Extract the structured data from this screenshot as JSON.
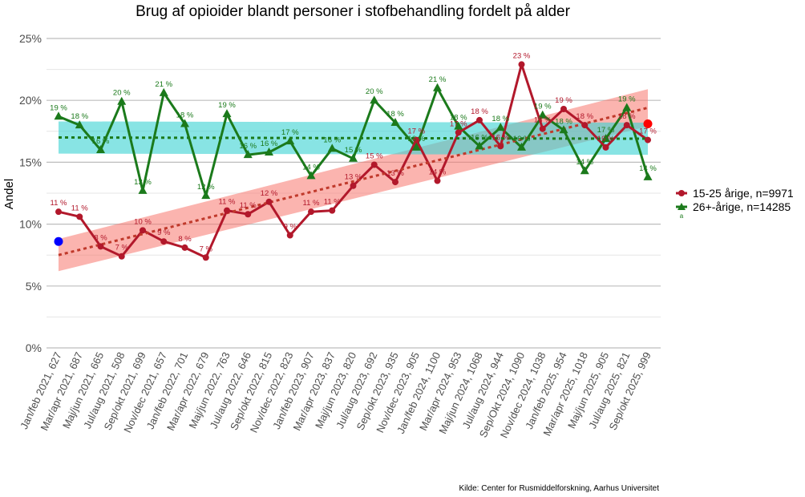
{
  "chart_data": {
    "type": "line",
    "title": "Brug af opioider blandt personer i stofbehandling fordelt på alder",
    "xlabel": "",
    "ylabel": "Andel",
    "ylim": [
      0,
      25
    ],
    "yticks": [
      "0%",
      "5%",
      "10%",
      "15%",
      "20%",
      "25%"
    ],
    "ytick_values": [
      0,
      5,
      10,
      15,
      20,
      25
    ],
    "categories": [
      "Jan/feb 2021, 627",
      "Mar/apr 2021, 687",
      "Maj/jun 2021, 665",
      "Jul/aug 2021, 508",
      "Sep/okt 2021, 699",
      "Nov/dec 2021, 657",
      "Jan/feb 2022, 701",
      "Mar/apr 2022, 679",
      "Maj/jun 2022, 763",
      "Jul/aug 2022, 646",
      "Sep/okt 2022, 815",
      "Nov/dec 2022, 823",
      "Jan/feb 2023, 907",
      "Mar/apr 2023, 837",
      "Maj/jun 2023, 820",
      "Jul/aug 2023, 692",
      "Sep/okt 2023, 935",
      "Nov/dec 2023, 905",
      "Jan/feb 2024, 1100",
      "Mar/apr 2024, 953",
      "Maj/jun 2024, 1068",
      "Jul/aug 2024, 944",
      "Sep/Okt 2024, 1090",
      "Nov/dec 2024, 1038",
      "Jan/feb 2025, 954",
      "Mar/apr 2025, 1018",
      "Maj/jun 2025, 905",
      "Jul/aug 2025, 821",
      "Sep/okt 2025, 999"
    ],
    "series": [
      {
        "name": "15-25 årige, n=9971",
        "color": "#b2182b",
        "trend_color": "#c0392b",
        "band_color": "#f8766d",
        "marker": "circle",
        "values": [
          11.0,
          10.6,
          8.2,
          7.4,
          9.5,
          8.6,
          8.1,
          7.3,
          11.1,
          10.8,
          11.8,
          9.1,
          11.0,
          11.1,
          13.1,
          14.8,
          13.4,
          16.8,
          13.5,
          17.4,
          18.4,
          16.3,
          22.9,
          17.7,
          19.3,
          18.0,
          16.2,
          18.0,
          16.8
        ],
        "labels": [
          "11 %",
          "11 %",
          "8 %",
          "7 %",
          "10 %",
          "9 %",
          "8 %",
          "7 %",
          "11 %",
          "11 %",
          "12 %",
          "9 %",
          "11 %",
          "11 %",
          "13 %",
          "15 %",
          "13 %",
          "17 %",
          "14 %",
          "17 %",
          "18 %",
          "16 %",
          "23 %",
          "18 %",
          "19 %",
          "18 %",
          "16 %",
          "18 %",
          "17 %"
        ],
        "trend": [
          7.5,
          19.4
        ],
        "band": [
          [
            6.2,
            8.8
          ],
          [
            17.9,
            20.9
          ]
        ],
        "highlight_first": {
          "value": 8.6,
          "color": "#0000ff"
        },
        "highlight_last": {
          "value": 18.1,
          "color": "#ff0000"
        }
      },
      {
        "name": "26+-årige, n=14285",
        "color": "#1b7a1b",
        "trend_color": "#1b7a1b",
        "band_color": "#3fd3d3",
        "marker": "triangle",
        "values": [
          18.7,
          18.0,
          16.0,
          19.9,
          12.7,
          20.6,
          18.1,
          12.3,
          18.9,
          15.6,
          15.8,
          16.7,
          13.9,
          16.1,
          15.3,
          20.0,
          18.2,
          16.2,
          21.0,
          17.9,
          16.3,
          17.8,
          16.2,
          18.8,
          17.6,
          14.3,
          16.9,
          19.4,
          13.8
        ],
        "labels": [
          "19 %",
          "18 %",
          "16 %",
          "20 %",
          "13 %",
          "21 %",
          "18 %",
          "12 %",
          "19 %",
          "16 %",
          "16 %",
          "17 %",
          "14 %",
          "16 %",
          "15 %",
          "20 %",
          "18 %",
          "16 %",
          "21 %",
          "18 %",
          "16 %",
          "18 %",
          "16 %",
          "19 %",
          "18 %",
          "14 %",
          "17 %",
          "19 %",
          "14 %"
        ],
        "trend": [
          17.0,
          16.9
        ],
        "band": [
          [
            15.7,
            18.3
          ],
          [
            15.6,
            18.2
          ]
        ]
      }
    ],
    "legend_position": "right",
    "legend_note": "a",
    "grid": true,
    "source": "Kilde: Center for Rusmiddelforskning, Aarhus Universitet"
  }
}
